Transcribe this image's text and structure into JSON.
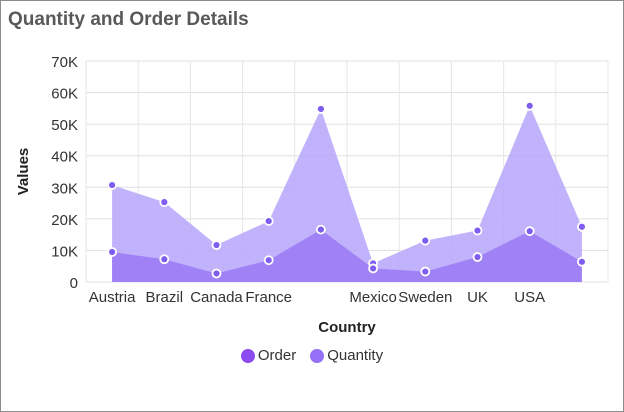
{
  "title": "Quantity and Order Details",
  "chart_data": {
    "type": "area",
    "categories": [
      "Austria",
      "Brazil",
      "Canada",
      "France",
      "",
      "Mexico",
      "Sweden",
      "UK",
      "USA",
      ""
    ],
    "series": [
      {
        "name": "Order",
        "values": [
          9500,
          7200,
          2700,
          6900,
          16600,
          4300,
          3300,
          7900,
          16100,
          6400
        ],
        "color": "#9b7bf5"
      },
      {
        "name": "Quantity",
        "values": [
          30700,
          25300,
          11700,
          19300,
          54800,
          5900,
          13100,
          16300,
          55800,
          17500
        ],
        "color": "#b8a9fb"
      }
    ],
    "xlabel": "Country",
    "ylabel": "Values",
    "yticks": [
      "0",
      "10K",
      "20K",
      "30K",
      "40K",
      "50K",
      "60K",
      "70K"
    ],
    "ylim": [
      0,
      70000
    ],
    "grid": true,
    "legend_position": "bottom",
    "legend": [
      {
        "label": "Order",
        "color": "#8a4cf0"
      },
      {
        "label": "Quantity",
        "color": "#9370f5"
      }
    ]
  }
}
